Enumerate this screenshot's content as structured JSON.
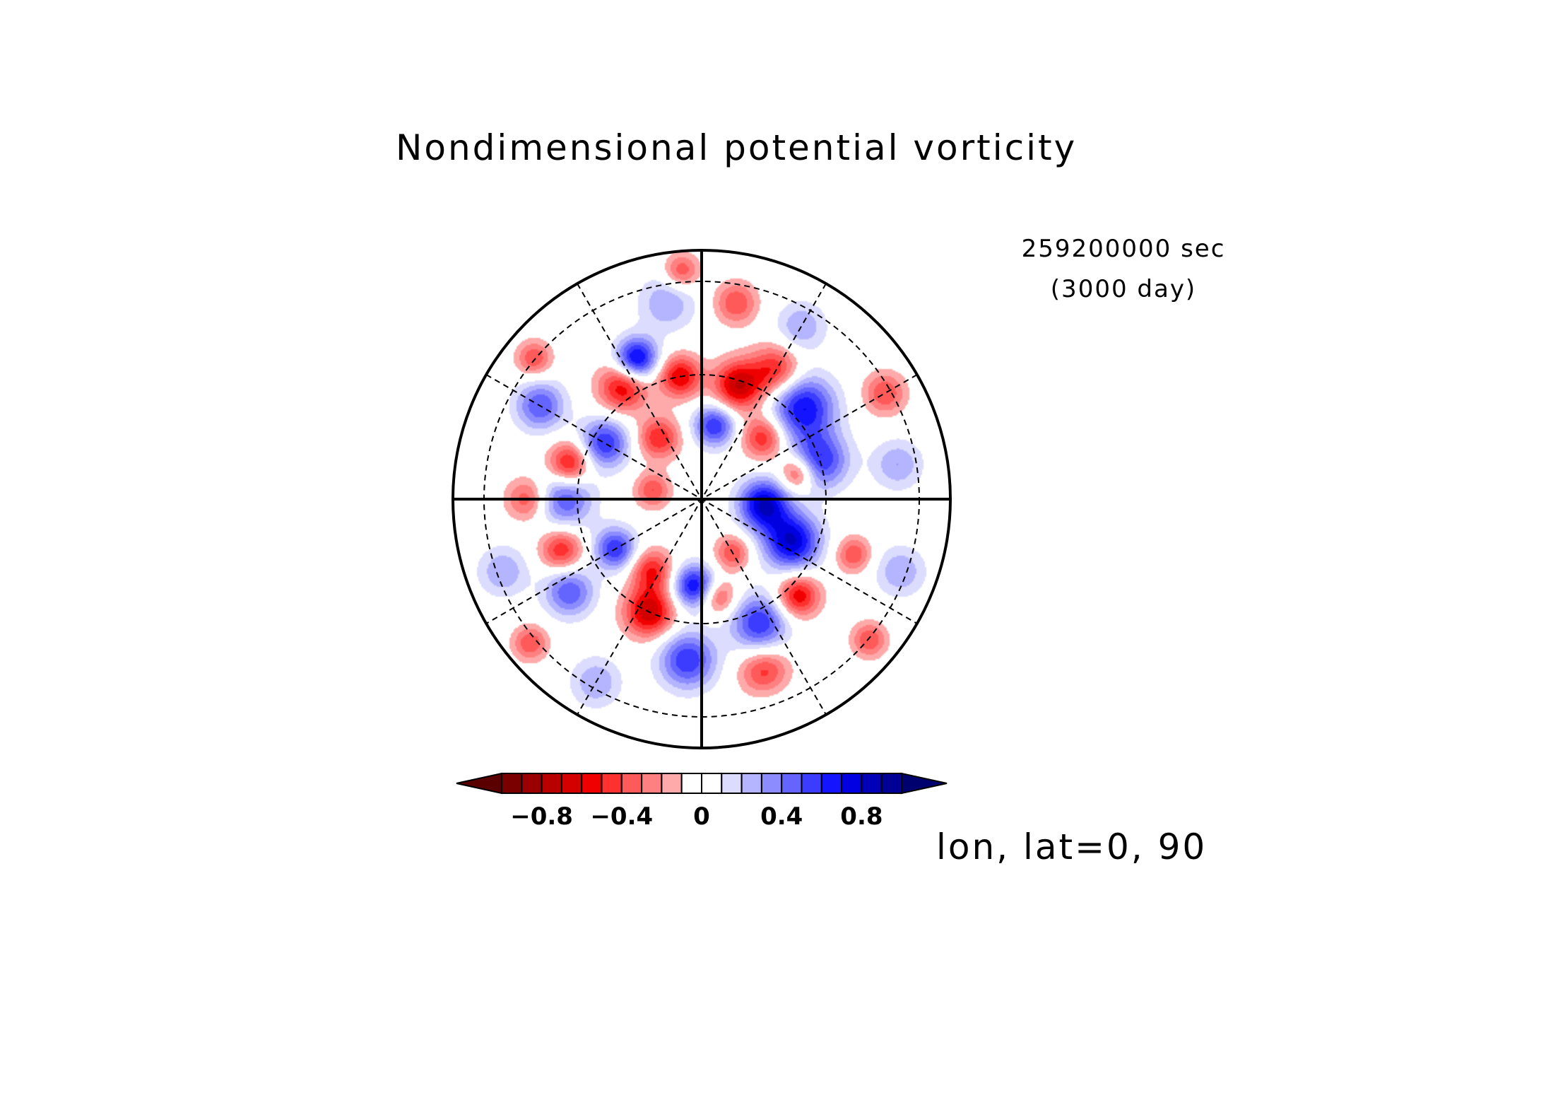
{
  "chart_data": {
    "type": "heatmap",
    "projection": "polar-stereographic",
    "title": "Nondimensional potential vorticity",
    "time_label": "259200000 sec",
    "time_sublabel": "(3000 day)",
    "caption": "lon, lat=0, 90",
    "colorbar": {
      "ticks": [
        "−0.8",
        "−0.4",
        "0",
        "0.4",
        "0.8"
      ],
      "levels": [
        -1.0,
        -0.9,
        -0.8,
        -0.7,
        -0.6,
        -0.5,
        -0.4,
        -0.3,
        -0.2,
        -0.1,
        0,
        0.1,
        0.2,
        0.3,
        0.4,
        0.5,
        0.6,
        0.7,
        0.8,
        0.9,
        1.0
      ],
      "colors": [
        "#5a0000",
        "#7a0000",
        "#9a0000",
        "#b80000",
        "#d40000",
        "#f00000",
        "#ff3030",
        "#ff5a5a",
        "#ff8080",
        "#ffaaaa",
        "#ffffff",
        "#ffffff",
        "#dcdcff",
        "#b4b4ff",
        "#8c8cff",
        "#6464ff",
        "#3c3cff",
        "#1414ff",
        "#0000e0",
        "#0000b8",
        "#000096",
        "#00006e"
      ],
      "extend": "both",
      "placement": "bottom"
    },
    "grid": {
      "meridians_deg": 30,
      "parallels": "dashed"
    },
    "anomalies": [
      {
        "r": 0.5,
        "theta": 18,
        "v": 0.6,
        "s": 0.08
      },
      {
        "r": 0.55,
        "theta": 42,
        "v": 0.7,
        "s": 0.09
      },
      {
        "r": 0.25,
        "theta": 355,
        "v": 0.8,
        "s": 0.07
      },
      {
        "r": 0.4,
        "theta": 335,
        "v": 0.8,
        "s": 0.08
      },
      {
        "r": 0.3,
        "theta": 80,
        "v": 0.6,
        "s": 0.06
      },
      {
        "r": 0.62,
        "theta": 115,
        "v": 0.8,
        "s": 0.06
      },
      {
        "r": 0.45,
        "theta": 150,
        "v": 0.6,
        "s": 0.07
      },
      {
        "r": 0.55,
        "theta": 180,
        "v": 0.5,
        "s": 0.08
      },
      {
        "r": 0.75,
        "theta": 150,
        "v": 0.5,
        "s": 0.07
      },
      {
        "r": 0.4,
        "theta": 210,
        "v": 0.6,
        "s": 0.06
      },
      {
        "r": 0.65,
        "theta": 215,
        "v": 0.5,
        "s": 0.07
      },
      {
        "r": 0.35,
        "theta": 265,
        "v": 0.7,
        "s": 0.06
      },
      {
        "r": 0.65,
        "theta": 265,
        "v": 0.6,
        "s": 0.08
      },
      {
        "r": 0.55,
        "theta": 295,
        "v": 0.6,
        "s": 0.08
      },
      {
        "r": 0.8,
        "theta": 10,
        "v": 0.3,
        "s": 0.07
      },
      {
        "r": 0.85,
        "theta": 340,
        "v": 0.3,
        "s": 0.07
      },
      {
        "r": 0.8,
        "theta": 60,
        "v": 0.3,
        "s": 0.07
      },
      {
        "r": 0.8,
        "theta": 100,
        "v": 0.3,
        "s": 0.08
      },
      {
        "r": 0.85,
        "theta": 200,
        "v": 0.3,
        "s": 0.07
      },
      {
        "r": 0.85,
        "theta": 240,
        "v": 0.3,
        "s": 0.07
      },
      {
        "r": 0.78,
        "theta": 290,
        "v": 0.3,
        "s": 0.07
      },
      {
        "r": 0.48,
        "theta": 72,
        "v": -0.7,
        "s": 0.07
      },
      {
        "r": 0.5,
        "theta": 100,
        "v": -0.6,
        "s": 0.06
      },
      {
        "r": 0.55,
        "theta": 125,
        "v": -0.6,
        "s": 0.07
      },
      {
        "r": 0.3,
        "theta": 125,
        "v": -0.5,
        "s": 0.06
      },
      {
        "r": 0.35,
        "theta": 45,
        "v": -0.5,
        "s": 0.06
      },
      {
        "r": 0.6,
        "theta": 60,
        "v": -0.5,
        "s": 0.07
      },
      {
        "r": 0.8,
        "theta": 80,
        "v": -0.4,
        "s": 0.06
      },
      {
        "r": 0.55,
        "theta": 165,
        "v": -0.6,
        "s": 0.06
      },
      {
        "r": 0.5,
        "theta": 245,
        "v": -0.7,
        "s": 0.07
      },
      {
        "r": 0.35,
        "theta": 235,
        "v": -0.5,
        "s": 0.06
      },
      {
        "r": 0.75,
        "theta": 290,
        "v": -0.7,
        "s": 0.07
      },
      {
        "r": 0.55,
        "theta": 315,
        "v": -0.6,
        "s": 0.06
      },
      {
        "r": 0.4,
        "theta": 15,
        "v": -0.5,
        "s": 0.05
      },
      {
        "r": 0.25,
        "theta": 300,
        "v": -0.4,
        "s": 0.05
      },
      {
        "r": 0.6,
        "theta": 200,
        "v": -0.5,
        "s": 0.06
      },
      {
        "r": 0.7,
        "theta": 180,
        "v": -0.4,
        "s": 0.06
      },
      {
        "r": 0.85,
        "theta": 30,
        "v": -0.4,
        "s": 0.06
      },
      {
        "r": 0.92,
        "theta": 95,
        "v": -0.4,
        "s": 0.05
      },
      {
        "r": 0.88,
        "theta": 140,
        "v": -0.4,
        "s": 0.05
      },
      {
        "r": 0.9,
        "theta": 220,
        "v": -0.4,
        "s": 0.05
      },
      {
        "r": 0.88,
        "theta": 320,
        "v": -0.4,
        "s": 0.05
      },
      {
        "r": 0.2,
        "theta": 170,
        "v": -0.4,
        "s": 0.05
      },
      {
        "r": 0.65,
        "theta": 340,
        "v": -0.4,
        "s": 0.05
      },
      {
        "r": 0.4,
        "theta": 280,
        "v": -0.4,
        "s": 0.05
      }
    ]
  }
}
